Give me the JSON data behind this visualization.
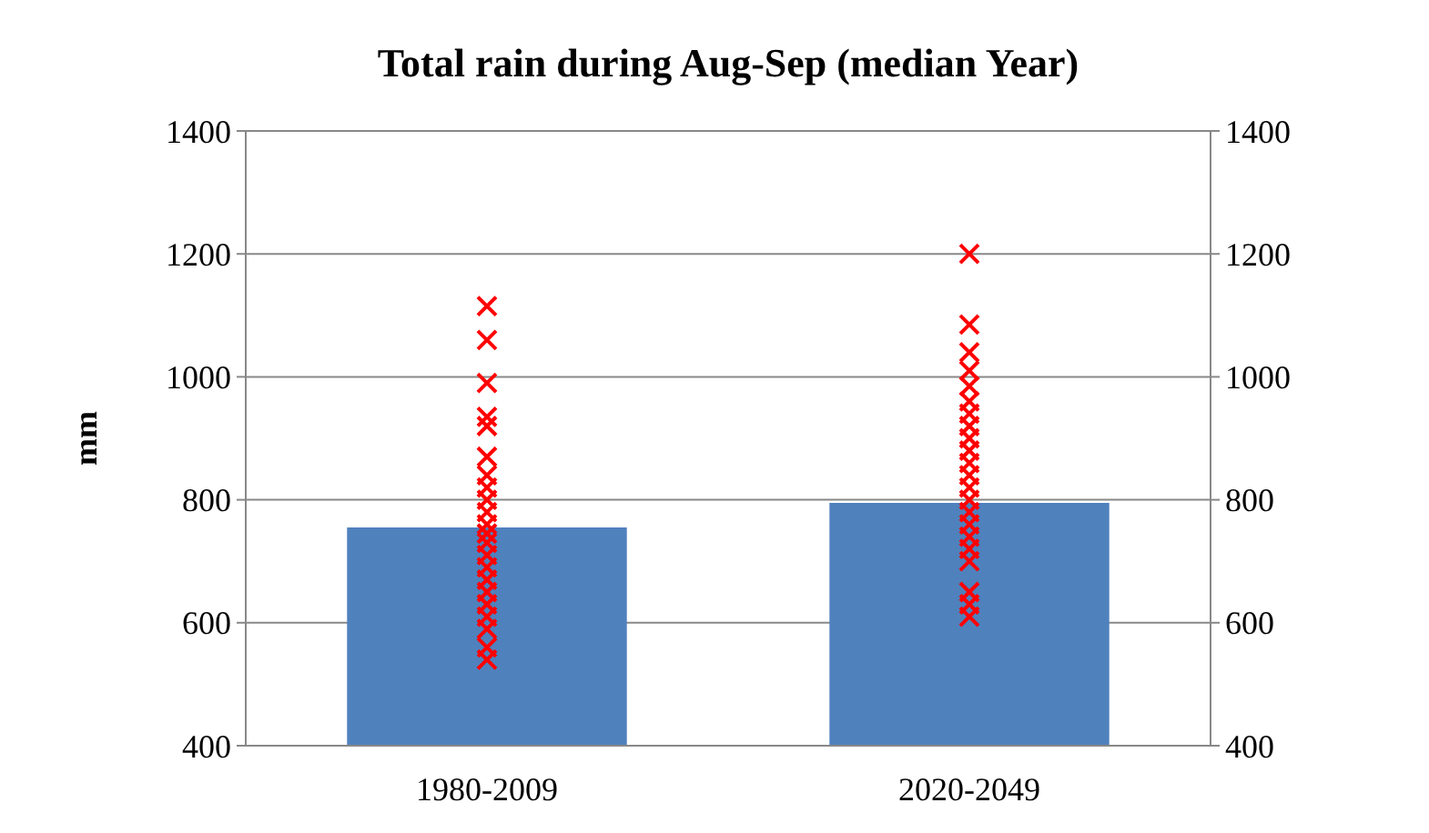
{
  "chart_data": {
    "type": "bar",
    "title": "Total rain during Aug-Sep (median Year)",
    "ylabel": "mm",
    "categories": [
      "1980-2009",
      "2020-2049"
    ],
    "series": [
      {
        "color": "#4f81bd",
        "values": [
          755,
          795
        ]
      },
      {
        "type": "scatter",
        "color": "#ff0000",
        "marker": "cross",
        "x": [
          "1980-2009",
          "1980-2009",
          "1980-2009",
          "1980-2009",
          "1980-2009",
          "1980-2009",
          "1980-2009",
          "1980-2009",
          "1980-2009",
          "1980-2009",
          "1980-2009",
          "1980-2009",
          "1980-2009",
          "1980-2009",
          "1980-2009",
          "1980-2009",
          "1980-2009",
          "1980-2009",
          "1980-2009",
          "1980-2009",
          "1980-2009",
          "1980-2009",
          "2020-2049",
          "2020-2049",
          "2020-2049",
          "2020-2049",
          "2020-2049",
          "2020-2049",
          "2020-2049",
          "2020-2049",
          "2020-2049",
          "2020-2049",
          "2020-2049",
          "2020-2049",
          "2020-2049",
          "2020-2049",
          "2020-2049",
          "2020-2049",
          "2020-2049",
          "2020-2049",
          "2020-2049",
          "2020-2049",
          "2020-2049",
          "2020-2049"
        ],
        "values": [
          1115,
          1060,
          990,
          935,
          920,
          870,
          840,
          820,
          800,
          780,
          760,
          745,
          730,
          710,
          690,
          670,
          650,
          630,
          610,
          590,
          560,
          540,
          1200,
          1085,
          1040,
          1010,
          985,
          960,
          940,
          920,
          900,
          880,
          860,
          840,
          820,
          800,
          780,
          760,
          740,
          720,
          700,
          650,
          630,
          610
        ]
      }
    ],
    "ylim": [
      400,
      1400
    ],
    "yticks": [
      400,
      600,
      800,
      1000,
      1200,
      1400
    ],
    "y2lim": [
      400,
      1400
    ],
    "y2ticks": [
      400,
      600,
      800,
      1000,
      1200,
      1400
    ],
    "grid": "y"
  }
}
